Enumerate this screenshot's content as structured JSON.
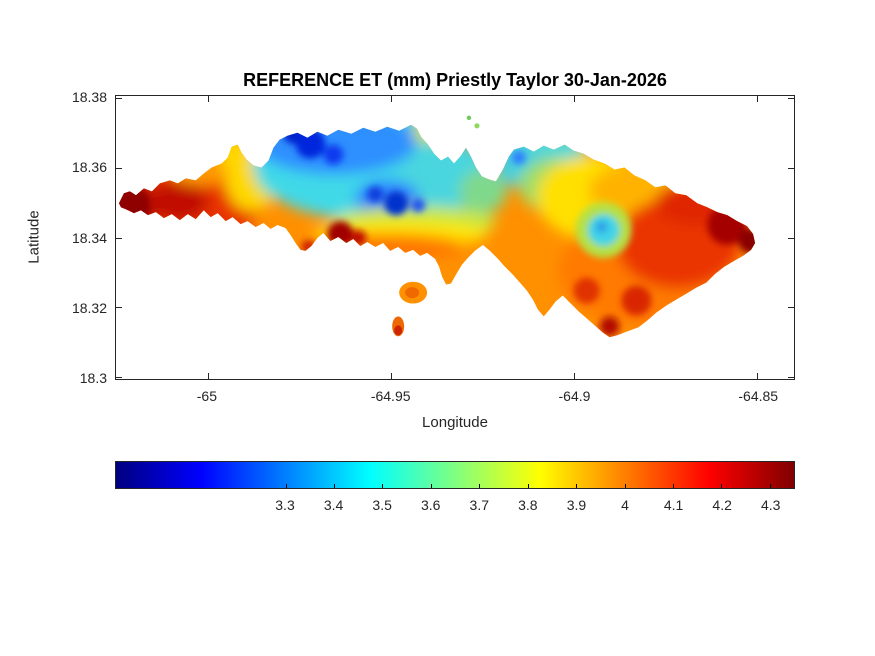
{
  "figure": {
    "background": "#ffffff"
  },
  "chart_data": {
    "type": "heatmap",
    "subtype": "filled-contour-map",
    "title": "REFERENCE ET (mm) Priestly Taylor 30-Jan-2026",
    "xlabel": "Longitude",
    "ylabel": "Latitude",
    "units": "mm",
    "grid": false,
    "legend": false,
    "x_axis": {
      "range": [
        -65.025,
        -64.84
      ],
      "ticks": [
        -65,
        -64.95,
        -64.9,
        -64.85
      ],
      "tick_labels": [
        "-65",
        "-64.95",
        "-64.9",
        "-64.85"
      ]
    },
    "y_axis": {
      "range": [
        18.2995,
        18.3805
      ],
      "ticks": [
        18.38,
        18.36,
        18.34,
        18.32,
        18.3
      ],
      "tick_labels": [
        "18.38",
        "18.36",
        "18.34",
        "18.32",
        "18.3"
      ]
    },
    "colorbar": {
      "orientation": "horizontal",
      "position": "south",
      "colormap": "jet",
      "range": [
        2.95,
        4.35
      ],
      "ticks": [
        3.3,
        3.4,
        3.5,
        3.6,
        3.7,
        3.8,
        3.9,
        4,
        4.1,
        4.2,
        4.3
      ],
      "tick_labels": [
        "3.3",
        "3.4",
        "3.5",
        "3.6",
        "3.7",
        "3.8",
        "3.9",
        "4",
        "4.1",
        "4.2",
        "4.3"
      ],
      "colormap_stops": [
        [
          "0%",
          "#000080"
        ],
        [
          "12.5%",
          "#0000ff"
        ],
        [
          "37.5%",
          "#00ffff"
        ],
        [
          "50%",
          "#80ff80"
        ],
        [
          "62.5%",
          "#ffff00"
        ],
        [
          "87.5%",
          "#ff0000"
        ],
        [
          "100%",
          "#800000"
        ]
      ]
    },
    "regions": [
      {
        "area": "west tip maximum",
        "lon": -65.02,
        "lat": 18.351,
        "et_mm": 4.3
      },
      {
        "area": "west lobe core",
        "lon": -65.005,
        "lat": 18.349,
        "et_mm": 4.2
      },
      {
        "area": "northwest yellow ridge",
        "lon": -64.99,
        "lat": 18.358,
        "et_mm": 3.95
      },
      {
        "area": "north-central minimum",
        "lon": -64.973,
        "lat": 18.366,
        "et_mm": 3.3
      },
      {
        "area": "central closed minimum",
        "lon": -64.954,
        "lat": 18.349,
        "et_mm": 3.35
      },
      {
        "area": "central cyan basin",
        "lon": -64.96,
        "lat": 18.356,
        "et_mm": 3.6
      },
      {
        "area": "bay notch east shore",
        "lon": -64.92,
        "lat": 18.362,
        "et_mm": 3.65
      },
      {
        "area": "central-east slope",
        "lon": -64.912,
        "lat": 18.35,
        "et_mm": 3.85
      },
      {
        "area": "closed low east (eddy)",
        "lon": -64.893,
        "lat": 18.341,
        "et_mm": 3.65
      },
      {
        "area": "southeast lobe",
        "lon": -64.88,
        "lat": 18.33,
        "et_mm": 4.1
      },
      {
        "area": "east dark maximum",
        "lon": -64.862,
        "lat": 18.344,
        "et_mm": 4.3
      },
      {
        "area": "east tip",
        "lon": -64.849,
        "lat": 18.34,
        "et_mm": 4.3
      },
      {
        "area": "south-central maximum",
        "lon": -64.963,
        "lat": 18.338,
        "et_mm": 4.25
      },
      {
        "area": "southern islets",
        "lon": -64.945,
        "lat": 18.322,
        "et_mm": 4.05
      }
    ]
  }
}
